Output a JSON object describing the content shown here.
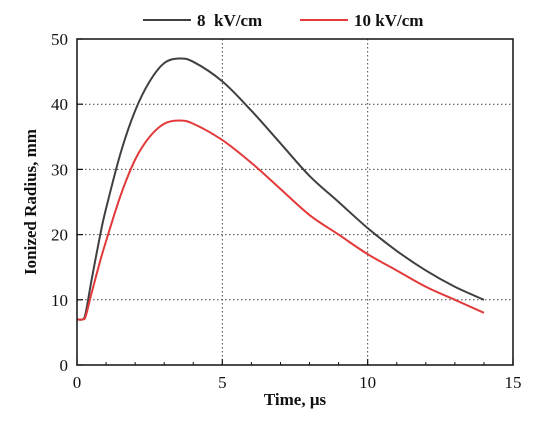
{
  "chart_data": {
    "type": "line",
    "xlabel": "Time, μs",
    "ylabel": "Ionized Radius, mm",
    "xlim": [
      0,
      15
    ],
    "ylim": [
      0,
      50
    ],
    "x_ticks": [
      0,
      5,
      10,
      15
    ],
    "y_ticks": [
      0,
      10,
      20,
      30,
      40,
      50
    ],
    "grid": true,
    "legend_position": "top",
    "series": [
      {
        "name": "8  kV/cm",
        "color": "#404040",
        "x": [
          0,
          0.2,
          0.3,
          0.5,
          0.8,
          1,
          1.5,
          2,
          2.5,
          3,
          3.5,
          4,
          5,
          6,
          7,
          8,
          9,
          10,
          11,
          12,
          13,
          14
        ],
        "y": [
          7,
          7,
          8,
          13,
          20,
          24,
          32.5,
          39,
          43.5,
          46.3,
          47,
          46.5,
          43.5,
          39,
          34,
          29,
          25,
          21,
          17.5,
          14.5,
          12,
          10
        ]
      },
      {
        "name": "10 kV/cm",
        "color": "#e23a3a",
        "x": [
          0,
          0.2,
          0.3,
          0.5,
          0.8,
          1,
          1.5,
          2,
          2.5,
          3,
          3.5,
          4,
          5,
          6,
          7,
          8,
          9,
          10,
          11,
          12,
          13,
          14
        ],
        "y": [
          7,
          7,
          7.5,
          11,
          16,
          19,
          26,
          31.5,
          35,
          37,
          37.5,
          37,
          34.5,
          31,
          27,
          23,
          20,
          17,
          14.5,
          12,
          10,
          8
        ]
      }
    ]
  }
}
